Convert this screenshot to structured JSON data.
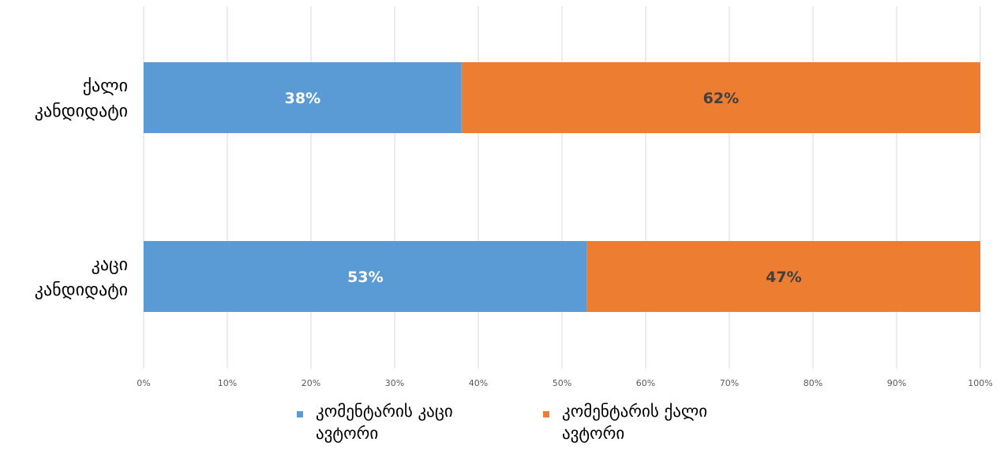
{
  "chart_data": {
    "type": "bar",
    "orientation": "horizontal",
    "stacked": "percent",
    "categories": [
      "ქალი კანდიდატი",
      "კაცი კანდიდატი"
    ],
    "series": [
      {
        "name": "კომენტარის კაცი ავტორი",
        "values": [
          38,
          53
        ],
        "data_labels": [
          "38%",
          "53%"
        ],
        "color": "#5B9BD5",
        "label_color": "#ffffff"
      },
      {
        "name": "კომენტარის ქალი ავტორი",
        "values": [
          62,
          47
        ],
        "data_labels": [
          "62%",
          "47%"
        ],
        "color": "#ED7D31",
        "label_color": "#404040"
      }
    ],
    "xlim": [
      0,
      100
    ],
    "x_ticks": [
      "0%",
      "10%",
      "20%",
      "30%",
      "40%",
      "50%",
      "60%",
      "70%",
      "80%",
      "90%",
      "100%"
    ],
    "grid": true,
    "legend_position": "bottom"
  }
}
